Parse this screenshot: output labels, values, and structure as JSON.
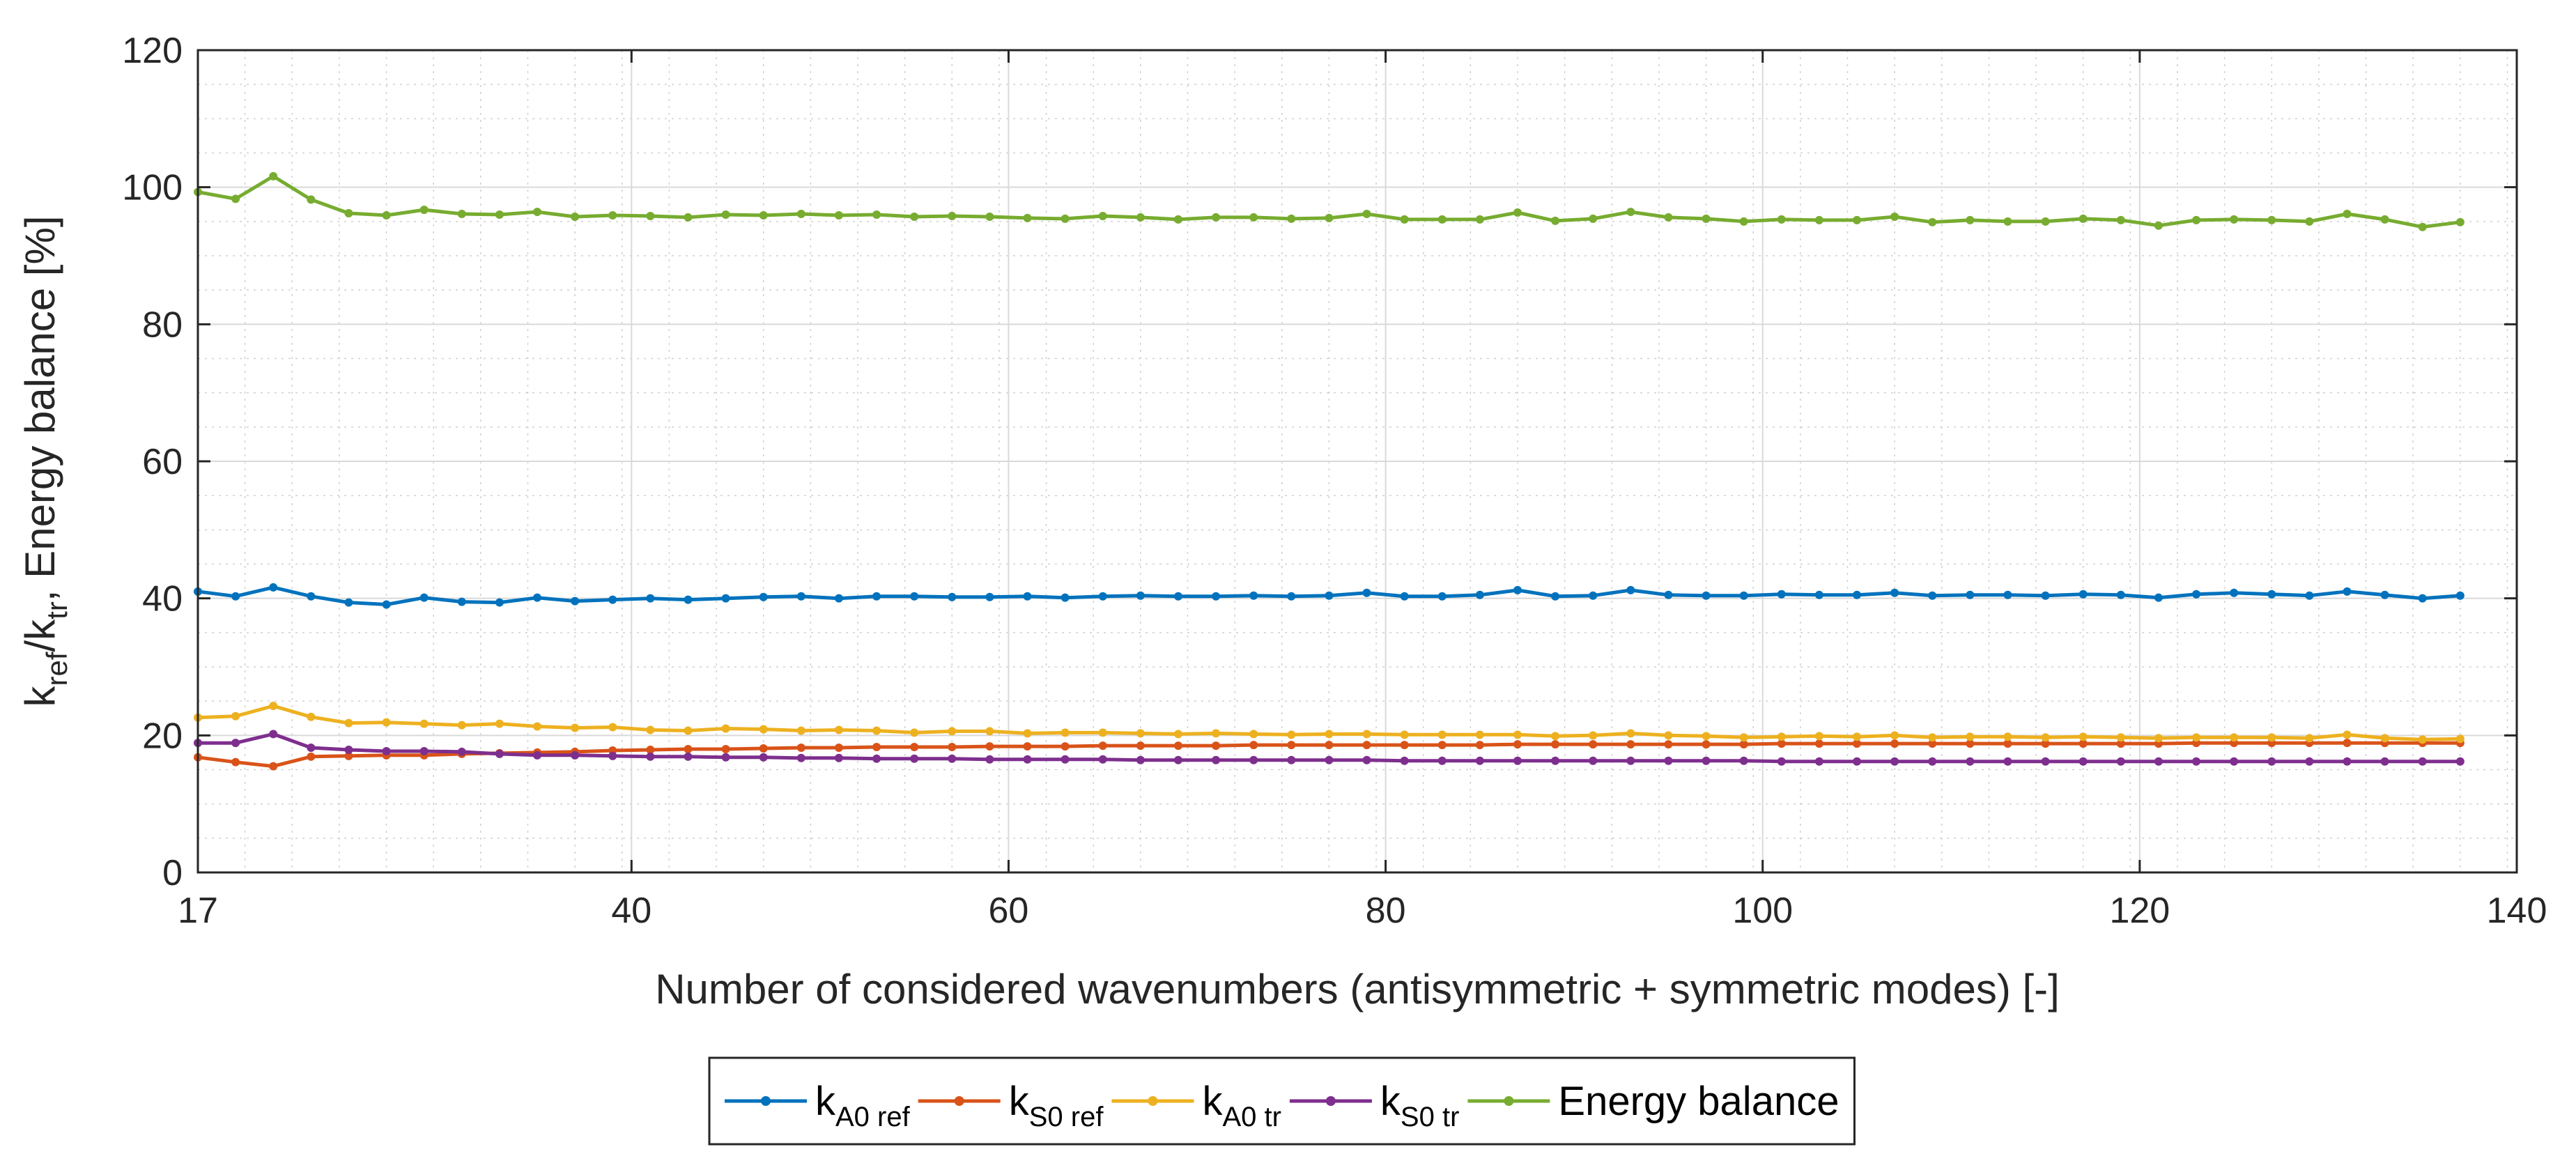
{
  "chart_data": {
    "type": "line",
    "xlabel": "Number of considered wavenumbers (antisymmetric + symmetric modes) [-]",
    "ylabel_parts": [
      "k",
      "ref",
      "/k",
      "tr",
      ", Energy balance [%]"
    ],
    "xlim": [
      17,
      140
    ],
    "ylim": [
      0,
      120
    ],
    "x_ticks": [
      17,
      40,
      60,
      80,
      100,
      120,
      140
    ],
    "y_ticks": [
      0,
      20,
      40,
      60,
      80,
      100,
      120
    ],
    "grid": true,
    "minor_grid": true,
    "legend_position": "bottom-center-outside",
    "x": [
      17,
      19,
      21,
      23,
      25,
      27,
      29,
      31,
      33,
      35,
      37,
      39,
      41,
      43,
      45,
      47,
      49,
      51,
      53,
      55,
      57,
      59,
      61,
      63,
      65,
      67,
      69,
      71,
      73,
      75,
      77,
      79,
      81,
      83,
      85,
      87,
      89,
      91,
      93,
      95,
      97,
      99,
      101,
      103,
      105,
      107,
      109,
      111,
      113,
      115,
      117,
      119,
      121,
      123,
      125,
      127,
      129,
      131,
      133,
      135,
      137
    ],
    "series": [
      {
        "name": "kA0 ref",
        "label_main": "k",
        "label_sub": "A0 ref",
        "color": "#0072BD",
        "values": [
          41.0,
          40.3,
          41.6,
          40.3,
          39.4,
          39.1,
          40.1,
          39.5,
          39.4,
          40.1,
          39.6,
          39.8,
          40.0,
          39.8,
          40.0,
          40.2,
          40.3,
          40.0,
          40.3,
          40.3,
          40.2,
          40.2,
          40.3,
          40.1,
          40.3,
          40.4,
          40.3,
          40.3,
          40.4,
          40.3,
          40.4,
          40.8,
          40.3,
          40.3,
          40.5,
          41.2,
          40.3,
          40.4,
          41.2,
          40.5,
          40.4,
          40.4,
          40.6,
          40.5,
          40.5,
          40.8,
          40.4,
          40.5,
          40.5,
          40.4,
          40.6,
          40.5,
          40.1,
          40.6,
          40.8,
          40.6,
          40.4,
          41.0,
          40.5,
          40.0,
          40.4
        ]
      },
      {
        "name": "kS0 ref",
        "label_main": "k",
        "label_sub": "S0 ref",
        "color": "#D95319",
        "values": [
          16.8,
          16.1,
          15.5,
          16.9,
          17.0,
          17.1,
          17.1,
          17.3,
          17.4,
          17.5,
          17.6,
          17.8,
          17.9,
          18.0,
          18.0,
          18.1,
          18.2,
          18.2,
          18.3,
          18.3,
          18.3,
          18.4,
          18.4,
          18.4,
          18.5,
          18.5,
          18.5,
          18.5,
          18.6,
          18.6,
          18.6,
          18.6,
          18.6,
          18.6,
          18.6,
          18.7,
          18.7,
          18.7,
          18.7,
          18.7,
          18.7,
          18.7,
          18.8,
          18.8,
          18.8,
          18.8,
          18.8,
          18.8,
          18.8,
          18.8,
          18.8,
          18.8,
          18.8,
          18.9,
          18.9,
          18.9,
          18.9,
          18.9,
          18.9,
          18.9,
          18.9
        ]
      },
      {
        "name": "kA0 tr",
        "label_main": "k",
        "label_sub": "A0 tr",
        "color": "#EDB120",
        "values": [
          22.6,
          22.8,
          24.3,
          22.7,
          21.8,
          21.9,
          21.7,
          21.5,
          21.7,
          21.3,
          21.1,
          21.2,
          20.8,
          20.7,
          21.0,
          20.9,
          20.7,
          20.8,
          20.7,
          20.4,
          20.6,
          20.6,
          20.3,
          20.4,
          20.4,
          20.3,
          20.2,
          20.3,
          20.2,
          20.1,
          20.2,
          20.2,
          20.1,
          20.1,
          20.1,
          20.1,
          19.9,
          20.0,
          20.3,
          20.0,
          19.9,
          19.7,
          19.8,
          19.9,
          19.8,
          20.0,
          19.7,
          19.8,
          19.8,
          19.7,
          19.8,
          19.7,
          19.6,
          19.7,
          19.7,
          19.7,
          19.6,
          20.1,
          19.6,
          19.4,
          19.5
        ]
      },
      {
        "name": "kS0 tr",
        "label_main": "k",
        "label_sub": "S0 tr",
        "color": "#7E2F8E",
        "values": [
          18.9,
          18.9,
          20.2,
          18.2,
          17.9,
          17.7,
          17.7,
          17.6,
          17.3,
          17.1,
          17.1,
          17.0,
          16.9,
          16.9,
          16.8,
          16.8,
          16.7,
          16.7,
          16.6,
          16.6,
          16.6,
          16.5,
          16.5,
          16.5,
          16.5,
          16.4,
          16.4,
          16.4,
          16.4,
          16.4,
          16.4,
          16.4,
          16.3,
          16.3,
          16.3,
          16.3,
          16.3,
          16.3,
          16.3,
          16.3,
          16.3,
          16.3,
          16.2,
          16.2,
          16.2,
          16.2,
          16.2,
          16.2,
          16.2,
          16.2,
          16.2,
          16.2,
          16.2,
          16.2,
          16.2,
          16.2,
          16.2,
          16.2,
          16.2,
          16.2,
          16.2
        ]
      },
      {
        "name": "Energy balance",
        "label_main": "Energy balance",
        "label_sub": "",
        "color": "#77AC30",
        "values": [
          99.3,
          98.3,
          101.6,
          98.2,
          96.2,
          95.9,
          96.7,
          96.1,
          96.0,
          96.4,
          95.7,
          95.9,
          95.8,
          95.6,
          96.0,
          95.9,
          96.1,
          95.9,
          96.0,
          95.7,
          95.8,
          95.7,
          95.5,
          95.4,
          95.8,
          95.6,
          95.3,
          95.6,
          95.6,
          95.4,
          95.5,
          96.1,
          95.3,
          95.3,
          95.3,
          96.3,
          95.1,
          95.4,
          96.4,
          95.6,
          95.4,
          95.0,
          95.3,
          95.2,
          95.2,
          95.7,
          94.9,
          95.2,
          95.0,
          95.0,
          95.4,
          95.2,
          94.4,
          95.2,
          95.3,
          95.2,
          95.0,
          96.1,
          95.3,
          94.2,
          94.9
        ]
      }
    ]
  }
}
